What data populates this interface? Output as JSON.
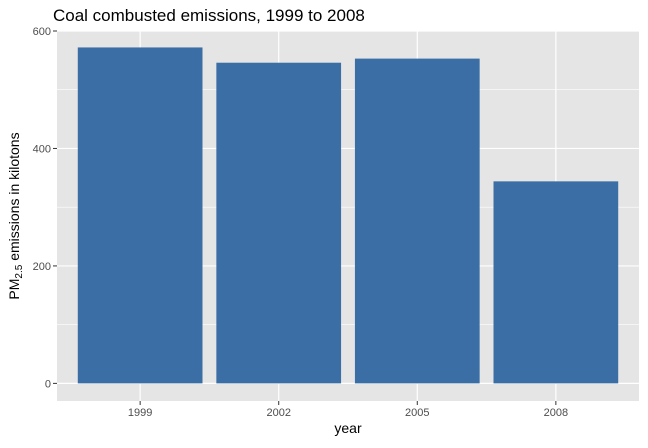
{
  "chart_data": {
    "type": "bar",
    "title": "Coal combusted emissions, 1999 to 2008",
    "xlabel": "year",
    "ylabel": {
      "prefix": "PM",
      "subscript": "2.5",
      "suffix": " emissions in kilotons"
    },
    "categories": [
      "1999",
      "2002",
      "2005",
      "2008"
    ],
    "values": [
      572,
      546,
      553,
      344
    ],
    "ylim": [
      -30,
      600
    ],
    "yticks": [
      0,
      200,
      400,
      600
    ],
    "bar_color": "#3A6EA5",
    "panel_background": "#E5E5E5",
    "grid": true
  }
}
